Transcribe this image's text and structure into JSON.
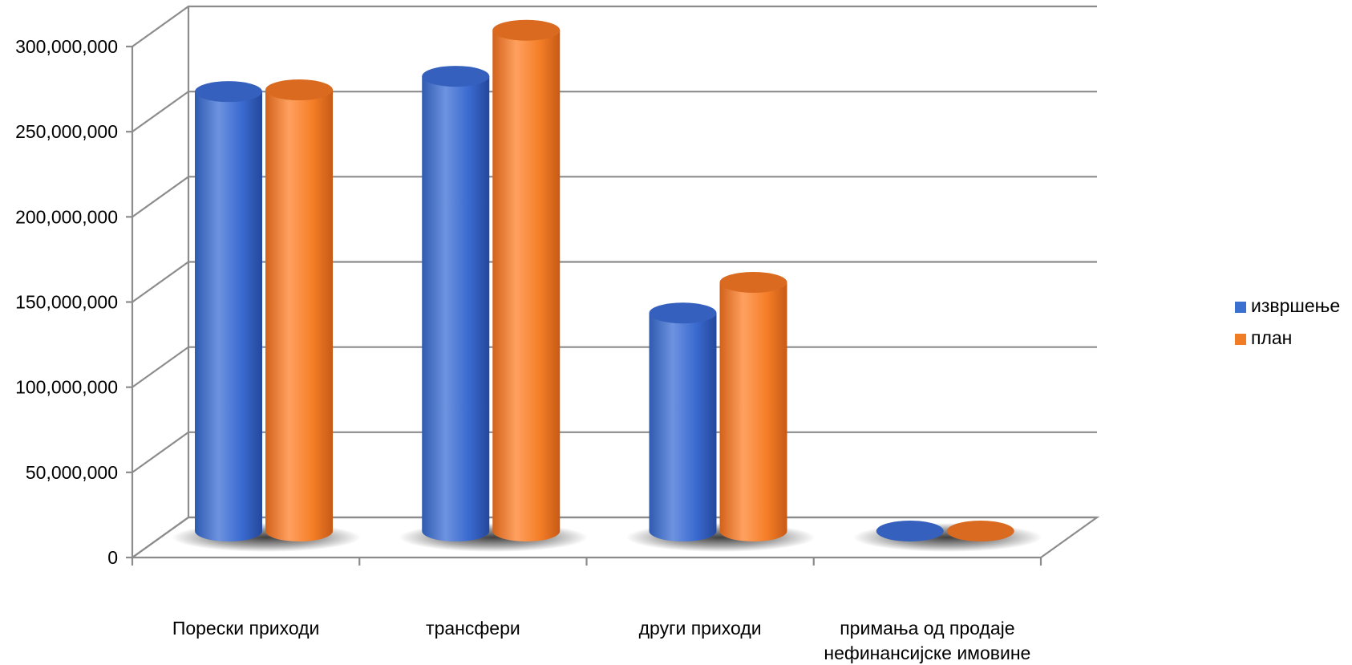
{
  "chart_data": {
    "type": "bar",
    "style": "3d-cylinder",
    "categories": [
      [
        "Пореск­и приходи"
      ],
      [
        "трансфери"
      ],
      [
        "други приходи"
      ],
      [
        "примања од продаје",
        "нефинансијске имовине"
      ]
    ],
    "series": [
      {
        "name": "извршење",
        "values": [
          258000000,
          267000000,
          128000000,
          0
        ],
        "color": "#3b6fd0"
      },
      {
        "name": "план",
        "values": [
          259000000,
          294000000,
          146000000,
          0
        ],
        "color": "#f07c25"
      }
    ],
    "ylim": [
      0,
      300000000
    ],
    "yticks": [
      "0",
      "50,000,000",
      "100,000,000",
      "150,000,000",
      "200,000,000",
      "250,000,000",
      "300,000,000"
    ],
    "grid": true,
    "legend_position": "right"
  }
}
